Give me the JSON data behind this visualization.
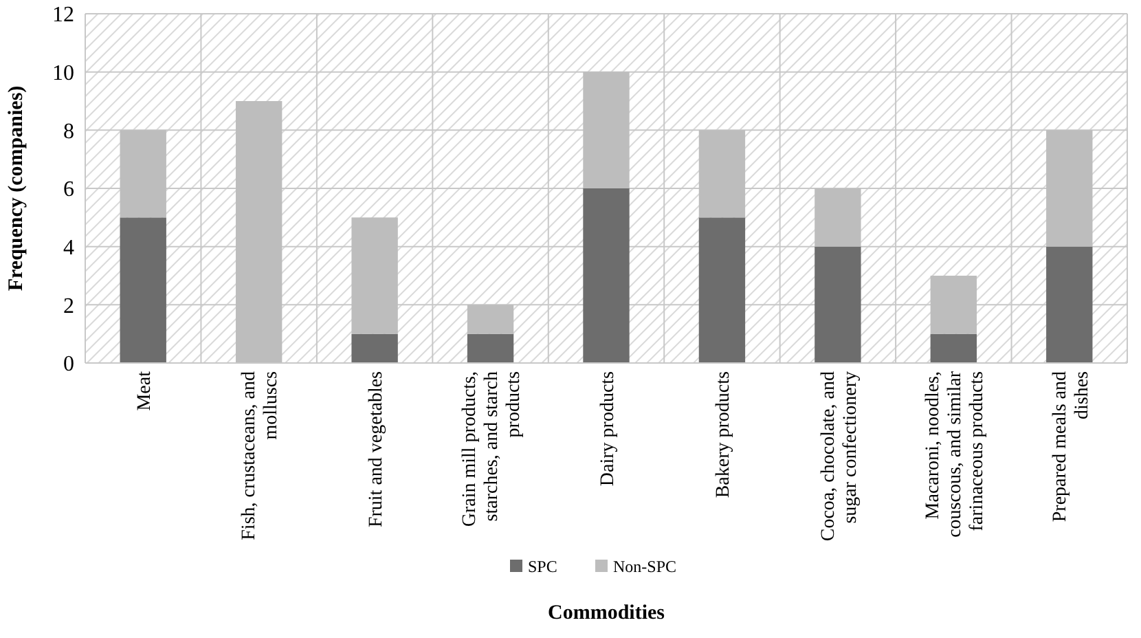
{
  "chart_data": {
    "type": "bar",
    "stacked": true,
    "xlabel": "Commodities",
    "ylabel": "Frequency (companies)",
    "categories": [
      "Meat",
      "Fish, crustaceans, and molluscs",
      "Fruit and vegetables",
      "Grain mill products, starches, and starch products",
      "Dairy products",
      "Bakery products",
      "Cocoa, chocolate, and sugar confectionery",
      "Macaroni, noodles, couscous, and similar farinaceous products",
      "Prepared meals and dishes"
    ],
    "series": [
      {
        "name": "SPC",
        "color": "#6d6d6d",
        "values": [
          5,
          0,
          1,
          1,
          6,
          5,
          4,
          1,
          4
        ]
      },
      {
        "name": "Non-SPC",
        "color": "#bdbdbd",
        "values": [
          3,
          9,
          4,
          1,
          4,
          3,
          2,
          2,
          4
        ]
      }
    ],
    "ylim": [
      0,
      12
    ],
    "yticks": [
      0,
      2,
      4,
      6,
      8,
      10,
      12
    ],
    "grid": true,
    "legend": "bottom"
  }
}
